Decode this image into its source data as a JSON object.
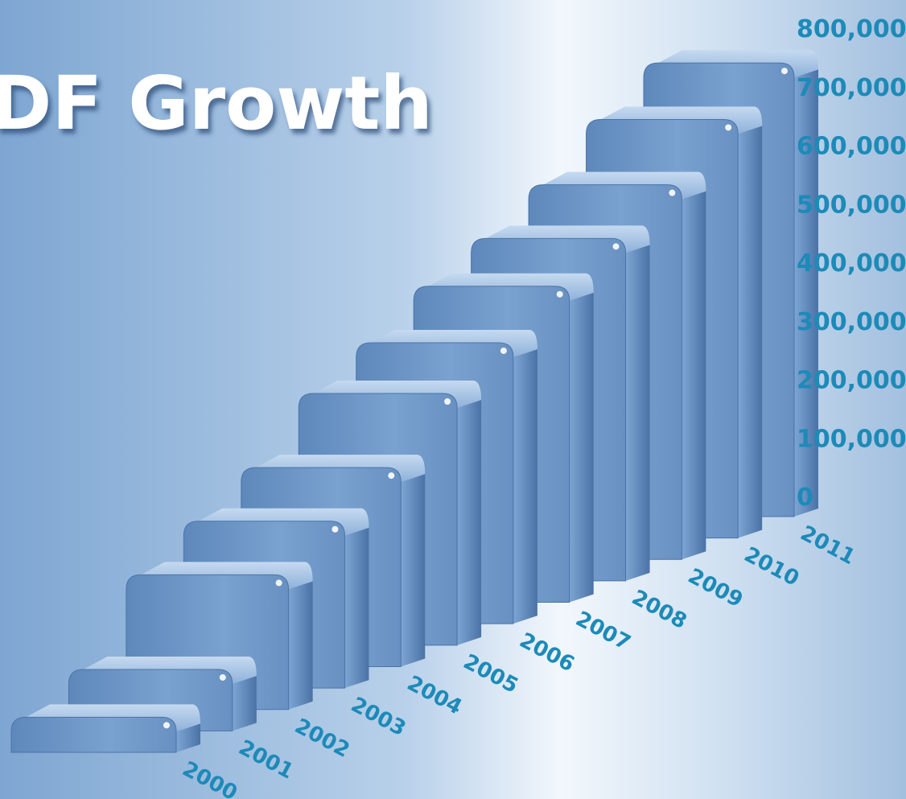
{
  "chart_data": {
    "type": "bar",
    "title": "DF Growth",
    "categories": [
      "2000",
      "2001",
      "2002",
      "2003",
      "2004",
      "2005",
      "2006",
      "2007",
      "2008",
      "2009",
      "2010",
      "2011"
    ],
    "values": [
      60000,
      105000,
      230000,
      285000,
      340000,
      430000,
      480000,
      540000,
      585000,
      640000,
      715000,
      775000
    ],
    "ylim": [
      0,
      800000
    ],
    "yticks": [
      "0",
      "100,000",
      "200,000",
      "300,000",
      "400,000",
      "500,000",
      "600,000",
      "700,000",
      "800,000"
    ],
    "grid": false,
    "colors": {
      "bar_front": "#6f98c8",
      "bar_side": "#4f79ad",
      "bar_top": "#a9c5e6",
      "label": "#1d8ab8",
      "title": "#ffffff",
      "background": "#aac6e2"
    }
  }
}
